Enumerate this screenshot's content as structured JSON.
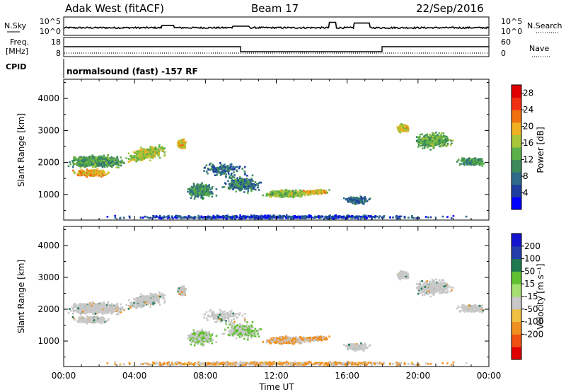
{
  "header": {
    "station": "Adak West (fitACF)",
    "beam": "Beam 17",
    "date": "22/Sep/2016"
  },
  "top_panels": {
    "nsky_label": "N.Sky",
    "nsky_ticks": [
      "10^5",
      "10^0"
    ],
    "nsearch_label": "N.Search",
    "nsearch_ticks": [
      "10^5",
      "10^0"
    ],
    "freq_label": [
      "Freq.",
      "[MHz]"
    ],
    "freq_ticks": [
      "18",
      "8"
    ],
    "nave_label": "Nave",
    "nave_ticks": [
      "60",
      "0"
    ],
    "cpid_label": "CPID",
    "cpid_text": "normalsound (fast) -157 RF"
  },
  "colors": {
    "power_scale": [
      "#0000ff",
      "#1f3fa0",
      "#2e6b8a",
      "#3c8a58",
      "#5cb04a",
      "#a8c63a",
      "#f0b020",
      "#f07010",
      "#f03010",
      "#e00000"
    ],
    "velocity_scale": [
      "#1414d0",
      "#223caa",
      "#1e7a50",
      "#60c030",
      "#a6e070",
      "#c8c8c8",
      "#f0c040",
      "#f09020",
      "#f05010",
      "#e00000"
    ]
  },
  "chart_data": [
    {
      "type": "heatmap",
      "name": "power",
      "xlabel": "Time UT",
      "ylabel": "Slant Range [km]",
      "xlim": [
        0,
        24
      ],
      "ylim": [
        200,
        4600
      ],
      "x_ticks": [
        "00:00",
        "04:00",
        "08:00",
        "12:00",
        "16:00",
        "20:00",
        "00:00"
      ],
      "y_ticks": [
        "1000",
        "2000",
        "3000",
        "4000"
      ],
      "colorbar_label": "Power [dB]",
      "colorbar_ticks": [
        "4",
        "8",
        "12",
        "16",
        "20",
        "24",
        "28"
      ],
      "colorbar_range": [
        0,
        30
      ]
    },
    {
      "type": "heatmap",
      "name": "velocity",
      "xlabel": "Time UT",
      "ylabel": "Slant Range [km]",
      "xlim": [
        0,
        24
      ],
      "ylim": [
        200,
        4600
      ],
      "x_ticks": [
        "00:00",
        "04:00",
        "08:00",
        "12:00",
        "16:00",
        "20:00",
        "00:00"
      ],
      "y_ticks": [
        "1000",
        "2000",
        "3000",
        "4000"
      ],
      "colorbar_label": "Velocity [m s⁻¹]",
      "colorbar_ticks": [
        "200",
        "100",
        "50",
        "15",
        "-15",
        "-50",
        "-100",
        "-200"
      ]
    }
  ]
}
